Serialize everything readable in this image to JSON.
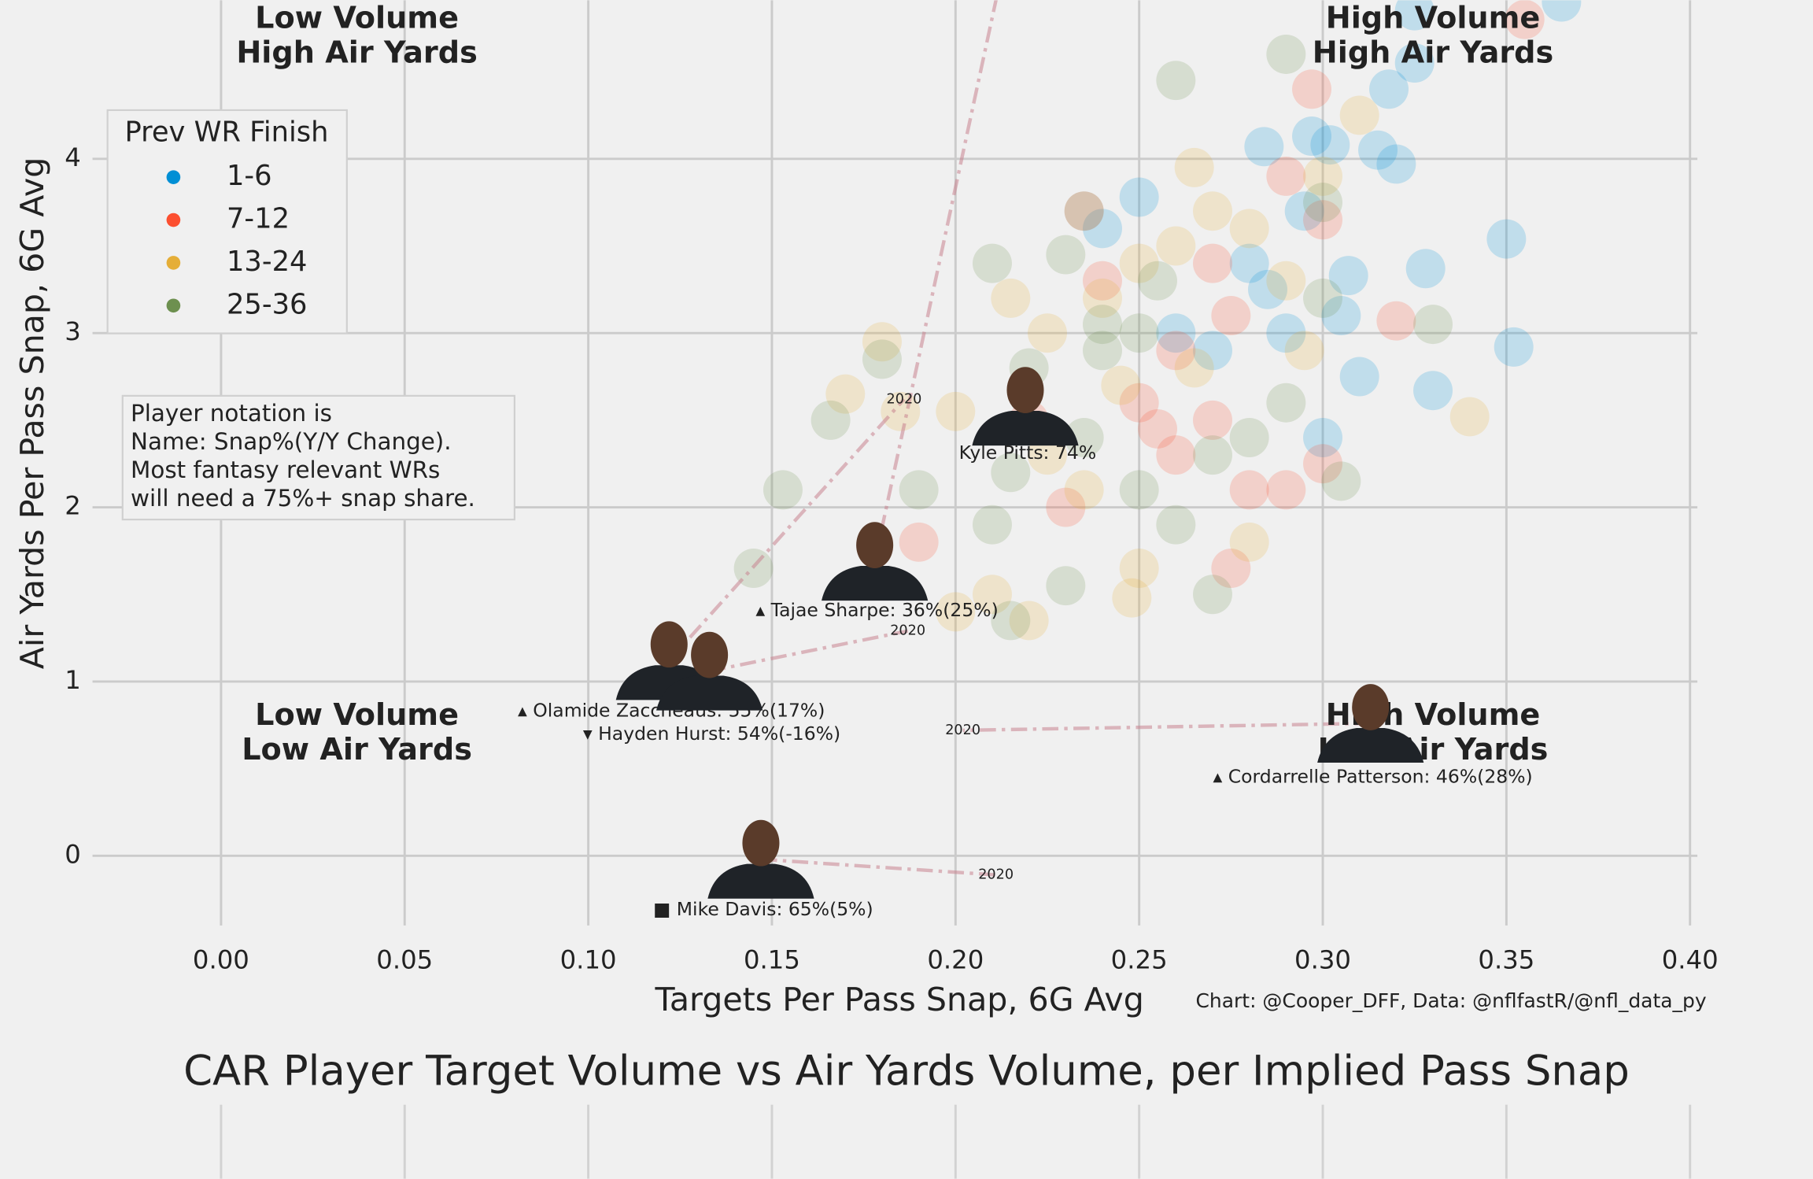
{
  "chart_data": {
    "type": "scatter",
    "title": "CAR Player Target Volume vs Air Yards Volume, per Implied Pass Snap",
    "xlabel": "Targets Per Pass Snap, 6G Avg",
    "ylabel": "Air Yards Per Pass Snap, 6G Avg",
    "credit": "Chart: @Cooper_DFF, Data: @nflfastR/@nfl_data_py",
    "legend_title": "Prev WR Finish",
    "legend": "upper left",
    "grid": true,
    "note": [
      "Player notation is",
      "Name: Snap%(Y/Y Change).",
      "Most fantasy relevant WRs",
      "will need a 75%+ snap share."
    ],
    "quadrants": [
      {
        "lines": [
          "Low Volume",
          "High Air Yards"
        ],
        "color": "#808080",
        "x": 0.037,
        "y": 4.7
      },
      {
        "lines": [
          "High Volume",
          "High Air Yards"
        ],
        "color": "#008000",
        "x": 0.33,
        "y": 4.7
      },
      {
        "lines": [
          "Low Volume",
          "Low Air Yards"
        ],
        "color": "#ff0000",
        "x": 0.037,
        "y": 0.7
      },
      {
        "lines": [
          "High Volume",
          "Low Air Yards"
        ],
        "color": "#808080",
        "x": 0.33,
        "y": 0.7
      }
    ],
    "xlim": [
      -0.035,
      0.402
    ],
    "ylim": [
      -0.4,
      4.91
    ],
    "xticks": [
      {
        "value": 0,
        "label": "0.00"
      },
      {
        "value": 0.05,
        "label": "0.05"
      },
      {
        "value": 0.1,
        "label": "0.10"
      },
      {
        "value": 0.15,
        "label": "0.15"
      },
      {
        "value": 0.2,
        "label": "0.20"
      },
      {
        "value": 0.25,
        "label": "0.25"
      },
      {
        "value": 0.3,
        "label": "0.30"
      },
      {
        "value": 0.35,
        "label": "0.35"
      },
      {
        "value": 0.4,
        "label": "0.40"
      }
    ],
    "yticks": [
      0,
      1,
      2,
      3,
      4
    ],
    "series": [
      {
        "name": "1-6",
        "color": "#008fd5",
        "x": [
          0.25,
          0.284,
          0.297,
          0.302,
          0.315,
          0.32,
          0.318,
          0.325,
          0.35,
          0.352,
          0.328,
          0.307,
          0.305,
          0.31,
          0.33,
          0.3,
          0.285,
          0.295,
          0.26,
          0.27,
          0.28,
          0.24,
          0.29,
          0.325,
          0.365
        ],
        "y": [
          3.78,
          4.07,
          4.13,
          4.08,
          4.05,
          3.97,
          4.4,
          4.55,
          3.54,
          2.92,
          3.37,
          3.33,
          3.1,
          2.75,
          2.67,
          2.4,
          3.25,
          3.7,
          3.0,
          2.9,
          3.4,
          3.6,
          3.0,
          4.85,
          4.9
        ]
      },
      {
        "name": "7-12",
        "color": "#fc4f30",
        "x": [
          0.29,
          0.297,
          0.3,
          0.32,
          0.355,
          0.24,
          0.26,
          0.27,
          0.275,
          0.28,
          0.29,
          0.3,
          0.25,
          0.23,
          0.19,
          0.275,
          0.26,
          0.27,
          0.255,
          0.22,
          0.235
        ],
        "y": [
          3.9,
          4.4,
          3.65,
          3.07,
          4.8,
          3.3,
          2.9,
          2.5,
          3.1,
          2.1,
          2.1,
          2.25,
          2.6,
          2.0,
          1.8,
          1.65,
          2.3,
          3.4,
          2.45,
          2.5,
          3.7
        ]
      },
      {
        "name": "13-24",
        "color": "#e5ae38",
        "x": [
          0.18,
          0.185,
          0.17,
          0.2,
          0.215,
          0.225,
          0.24,
          0.25,
          0.265,
          0.27,
          0.28,
          0.29,
          0.3,
          0.31,
          0.34,
          0.295,
          0.25,
          0.248,
          0.225,
          0.21,
          0.2,
          0.22,
          0.28,
          0.235,
          0.265,
          0.26,
          0.245
        ],
        "y": [
          2.95,
          2.55,
          2.65,
          2.55,
          3.2,
          3.0,
          3.2,
          3.4,
          3.95,
          3.7,
          3.6,
          3.3,
          3.9,
          4.25,
          2.52,
          2.9,
          1.65,
          1.48,
          2.3,
          1.5,
          1.4,
          1.35,
          1.8,
          2.1,
          2.8,
          3.5,
          2.7
        ]
      },
      {
        "name": "25-36",
        "color": "#6d904f",
        "x": [
          0.145,
          0.153,
          0.166,
          0.18,
          0.19,
          0.21,
          0.23,
          0.235,
          0.24,
          0.22,
          0.215,
          0.21,
          0.215,
          0.23,
          0.25,
          0.26,
          0.27,
          0.27,
          0.28,
          0.29,
          0.3,
          0.3,
          0.305,
          0.33,
          0.26,
          0.29,
          0.25,
          0.24,
          0.255,
          0.235
        ],
        "y": [
          1.65,
          2.1,
          2.5,
          2.85,
          2.1,
          3.4,
          3.45,
          3.7,
          3.05,
          2.8,
          2.2,
          1.9,
          1.35,
          1.55,
          2.1,
          1.9,
          2.3,
          1.5,
          2.4,
          4.6,
          3.75,
          3.2,
          2.15,
          3.05,
          4.45,
          2.6,
          3.0,
          2.9,
          3.3,
          2.4
        ]
      }
    ],
    "players": [
      {
        "label": "Kyle Pitts: 74%",
        "color": "#000000",
        "x": 0.219,
        "y": 2.58
      },
      {
        "label": "▴ Tajae Sharpe: 36%(25%)",
        "color": "#008000",
        "x": 0.178,
        "y": 1.69,
        "prev_x": 0.215,
        "prev_y": 5.3
      },
      {
        "label": "▴ Olamide Zaccheaus: 55%(17%)",
        "color": "#008000",
        "x": 0.122,
        "y": 1.12,
        "prev_x": 0.186,
        "prev_y": 2.62,
        "prev_label": "2020"
      },
      {
        "label": "▾ Hayden Hurst: 54%(-16%)",
        "color": "#ff0000",
        "x": 0.133,
        "y": 1.06,
        "prev_x": 0.187,
        "prev_y": 1.29,
        "prev_label": "2020"
      },
      {
        "label": "▴ Cordarrelle Patterson: 46%(28%)",
        "color": "#008000",
        "x": 0.313,
        "y": 0.76,
        "prev_x": 0.202,
        "prev_y": 0.72,
        "prev_label": "2020"
      },
      {
        "label": "■ Mike Davis: 65%(5%)",
        "color": "#000000",
        "x": 0.147,
        "y": -0.02,
        "prev_x": 0.211,
        "prev_y": -0.11,
        "prev_label": "2020"
      }
    ]
  }
}
